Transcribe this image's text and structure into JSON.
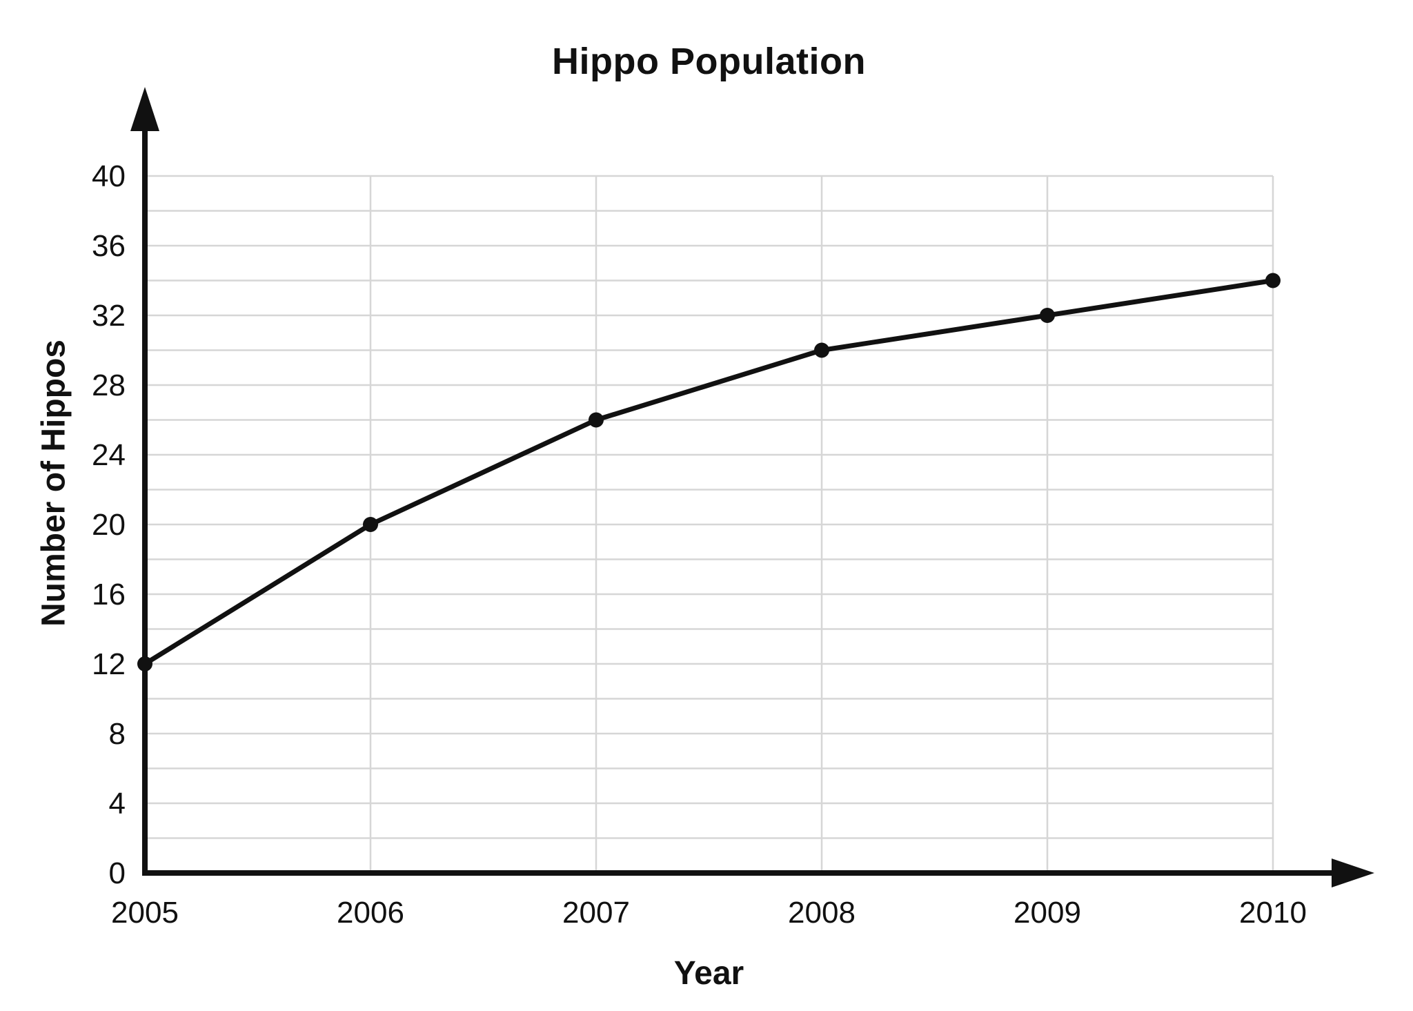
{
  "page": {
    "background": "#ffffff"
  },
  "chart_data": {
    "type": "line",
    "title": "Hippo Population",
    "xlabel": "Year",
    "ylabel": "Number of Hippos",
    "categories": [
      "2005",
      "2006",
      "2007",
      "2008",
      "2009",
      "2010"
    ],
    "series": [
      {
        "name": "Hippo Population",
        "values": [
          12,
          20,
          26,
          30,
          32,
          34
        ]
      }
    ],
    "ylim": [
      0,
      40
    ],
    "y_major_tick_step": 4,
    "y_minor_grid_step": 2,
    "y_tick_labels": [
      "0",
      "4",
      "8",
      "12",
      "16",
      "20",
      "24",
      "28",
      "32",
      "36",
      "40"
    ],
    "grid": "on",
    "legend": "none",
    "markers": "filled-circle",
    "axis_arrows": [
      "up",
      "right"
    ],
    "colors": {
      "line": "#111111",
      "marker": "#111111",
      "grid": "#d6d6d6",
      "axis": "#111111",
      "text": "#111111",
      "background": "#ffffff"
    }
  }
}
